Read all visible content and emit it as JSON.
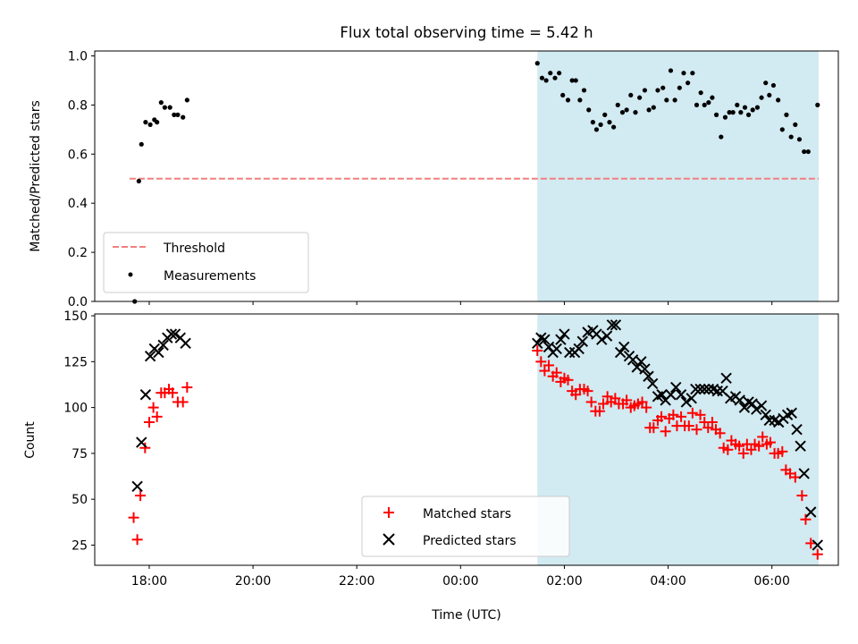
{
  "title": "Flux total observing time = 5.42 h",
  "colors": {
    "shade": "#add8e6",
    "threshold": "#f08080",
    "matched": "#ff0000",
    "predicted": "#000000",
    "measurement": "#000000"
  },
  "chart_data": [
    {
      "type": "scatter",
      "panel": "top",
      "ylabel": "Matched/Predicted stars",
      "ylim": [
        0,
        1.02
      ],
      "yticks": [
        0.0,
        0.2,
        0.4,
        0.6,
        0.8,
        1.0
      ],
      "ytick_labels": [
        "0.0",
        "0.2",
        "0.4",
        "0.6",
        "0.8",
        "1.0"
      ],
      "xlim": [
        16.95,
        31.28
      ],
      "shaded_x_range": [
        25.48,
        30.9
      ],
      "threshold": {
        "name": "Threshold",
        "value": 0.5,
        "x_range": [
          17.62,
          30.9
        ]
      },
      "legend": {
        "location": "lower left",
        "entries": [
          "Threshold",
          "Measurements"
        ]
      },
      "series": [
        {
          "name": "Measurements",
          "points": [
            [
              17.72,
              0.0
            ],
            [
              17.8,
              0.49
            ],
            [
              17.85,
              0.64
            ],
            [
              17.93,
              0.73
            ],
            [
              18.02,
              0.72
            ],
            [
              18.1,
              0.74
            ],
            [
              18.15,
              0.73
            ],
            [
              18.23,
              0.81
            ],
            [
              18.3,
              0.79
            ],
            [
              18.4,
              0.79
            ],
            [
              18.48,
              0.76
            ],
            [
              18.55,
              0.76
            ],
            [
              18.65,
              0.75
            ],
            [
              18.73,
              0.82
            ],
            [
              25.48,
              0.97
            ],
            [
              25.57,
              0.91
            ],
            [
              25.65,
              0.9
            ],
            [
              25.73,
              0.93
            ],
            [
              25.82,
              0.91
            ],
            [
              25.9,
              0.93
            ],
            [
              25.97,
              0.84
            ],
            [
              26.07,
              0.82
            ],
            [
              26.15,
              0.9
            ],
            [
              26.22,
              0.9
            ],
            [
              26.3,
              0.82
            ],
            [
              26.38,
              0.86
            ],
            [
              26.47,
              0.78
            ],
            [
              26.55,
              0.73
            ],
            [
              26.62,
              0.7
            ],
            [
              26.7,
              0.72
            ],
            [
              26.78,
              0.76
            ],
            [
              26.87,
              0.73
            ],
            [
              26.95,
              0.71
            ],
            [
              27.03,
              0.8
            ],
            [
              27.12,
              0.77
            ],
            [
              27.2,
              0.78
            ],
            [
              27.28,
              0.84
            ],
            [
              27.37,
              0.77
            ],
            [
              27.45,
              0.83
            ],
            [
              27.55,
              0.86
            ],
            [
              27.63,
              0.78
            ],
            [
              27.72,
              0.79
            ],
            [
              27.8,
              0.86
            ],
            [
              27.9,
              0.87
            ],
            [
              27.97,
              0.82
            ],
            [
              28.05,
              0.94
            ],
            [
              28.13,
              0.82
            ],
            [
              28.22,
              0.87
            ],
            [
              28.3,
              0.93
            ],
            [
              28.38,
              0.89
            ],
            [
              28.47,
              0.93
            ],
            [
              28.55,
              0.8
            ],
            [
              28.63,
              0.85
            ],
            [
              28.7,
              0.8
            ],
            [
              28.78,
              0.81
            ],
            [
              28.85,
              0.83
            ],
            [
              28.93,
              0.76
            ],
            [
              29.02,
              0.67
            ],
            [
              29.1,
              0.75
            ],
            [
              29.18,
              0.77
            ],
            [
              29.25,
              0.77
            ],
            [
              29.33,
              0.8
            ],
            [
              29.4,
              0.77
            ],
            [
              29.48,
              0.79
            ],
            [
              29.55,
              0.76
            ],
            [
              29.63,
              0.78
            ],
            [
              29.72,
              0.79
            ],
            [
              29.8,
              0.83
            ],
            [
              29.88,
              0.89
            ],
            [
              29.95,
              0.84
            ],
            [
              30.03,
              0.88
            ],
            [
              30.12,
              0.82
            ],
            [
              30.2,
              0.7
            ],
            [
              30.28,
              0.76
            ],
            [
              30.37,
              0.67
            ],
            [
              30.45,
              0.72
            ],
            [
              30.53,
              0.66
            ],
            [
              30.62,
              0.61
            ],
            [
              30.7,
              0.61
            ],
            [
              30.88,
              0.8
            ]
          ]
        }
      ]
    },
    {
      "type": "scatter",
      "panel": "bottom",
      "ylabel": "Count",
      "xlabel": "Time (UTC)",
      "ylim": [
        14,
        151
      ],
      "yticks": [
        25,
        50,
        75,
        100,
        125,
        150
      ],
      "ytick_labels": [
        "25",
        "50",
        "75",
        "100",
        "125",
        "150"
      ],
      "xlim": [
        16.95,
        31.28
      ],
      "xticks": [
        18,
        20,
        22,
        24,
        26,
        28,
        30
      ],
      "xtick_labels": [
        "18:00",
        "20:00",
        "22:00",
        "00:00",
        "02:00",
        "04:00",
        "06:00"
      ],
      "shaded_x_range": [
        25.48,
        30.9
      ],
      "legend": {
        "location": "lower center",
        "entries": [
          "Matched stars",
          "Predicted stars"
        ]
      },
      "series": [
        {
          "name": "Matched stars",
          "marker": "plus",
          "points": [
            [
              17.7,
              40
            ],
            [
              17.77,
              28
            ],
            [
              17.83,
              52
            ],
            [
              17.92,
              78
            ],
            [
              18.0,
              92
            ],
            [
              18.08,
              100
            ],
            [
              18.15,
              95
            ],
            [
              18.23,
              108
            ],
            [
              18.3,
              108
            ],
            [
              18.38,
              110
            ],
            [
              18.45,
              108
            ],
            [
              18.55,
              103
            ],
            [
              18.65,
              103
            ],
            [
              18.73,
              111
            ],
            [
              25.48,
              131
            ],
            [
              25.55,
              125
            ],
            [
              25.62,
              120
            ],
            [
              25.7,
              123
            ],
            [
              25.78,
              117
            ],
            [
              25.85,
              119
            ],
            [
              25.93,
              114
            ],
            [
              26.0,
              116
            ],
            [
              26.07,
              115
            ],
            [
              26.15,
              109
            ],
            [
              26.22,
              107
            ],
            [
              26.3,
              110
            ],
            [
              26.38,
              110
            ],
            [
              26.45,
              109
            ],
            [
              26.52,
              103
            ],
            [
              26.6,
              98
            ],
            [
              26.68,
              98
            ],
            [
              26.75,
              102
            ],
            [
              26.83,
              106
            ],
            [
              26.9,
              103
            ],
            [
              26.98,
              105
            ],
            [
              27.05,
              102
            ],
            [
              27.13,
              102
            ],
            [
              27.2,
              104
            ],
            [
              27.28,
              100
            ],
            [
              27.35,
              101
            ],
            [
              27.42,
              102
            ],
            [
              27.5,
              103
            ],
            [
              27.58,
              100
            ],
            [
              27.65,
              89
            ],
            [
              27.72,
              89
            ],
            [
              27.8,
              93
            ],
            [
              27.87,
              95
            ],
            [
              27.95,
              87
            ],
            [
              28.02,
              94
            ],
            [
              28.1,
              96
            ],
            [
              28.17,
              90
            ],
            [
              28.25,
              95
            ],
            [
              28.32,
              90
            ],
            [
              28.4,
              90
            ],
            [
              28.47,
              97
            ],
            [
              28.55,
              88
            ],
            [
              28.62,
              96
            ],
            [
              28.7,
              92
            ],
            [
              28.77,
              89
            ],
            [
              28.85,
              92
            ],
            [
              28.92,
              88
            ],
            [
              29.0,
              86
            ],
            [
              29.07,
              78
            ],
            [
              29.15,
              77
            ],
            [
              29.22,
              82
            ],
            [
              29.3,
              80
            ],
            [
              29.37,
              79
            ],
            [
              29.45,
              75
            ],
            [
              29.52,
              80
            ],
            [
              29.6,
              77
            ],
            [
              29.67,
              80
            ],
            [
              29.75,
              79
            ],
            [
              29.82,
              84
            ],
            [
              29.9,
              80
            ],
            [
              29.97,
              81
            ],
            [
              30.05,
              75
            ],
            [
              30.12,
              75
            ],
            [
              30.2,
              76
            ],
            [
              30.27,
              66
            ],
            [
              30.35,
              64
            ],
            [
              30.45,
              62
            ],
            [
              30.58,
              52
            ],
            [
              30.65,
              39
            ],
            [
              30.75,
              26
            ],
            [
              30.88,
              20
            ]
          ]
        },
        {
          "name": "Predicted stars",
          "marker": "x",
          "points": [
            [
              17.77,
              57
            ],
            [
              17.85,
              81
            ],
            [
              17.93,
              107
            ],
            [
              18.02,
              128
            ],
            [
              18.1,
              132
            ],
            [
              18.18,
              130
            ],
            [
              18.27,
              134
            ],
            [
              18.35,
              138
            ],
            [
              18.43,
              140
            ],
            [
              18.5,
              140
            ],
            [
              18.6,
              138
            ],
            [
              18.7,
              135
            ],
            [
              25.48,
              135
            ],
            [
              25.55,
              138
            ],
            [
              25.62,
              137
            ],
            [
              25.7,
              133
            ],
            [
              25.78,
              130
            ],
            [
              25.85,
              132
            ],
            [
              25.93,
              137
            ],
            [
              26.0,
              140
            ],
            [
              26.1,
              130
            ],
            [
              26.2,
              130
            ],
            [
              26.28,
              132
            ],
            [
              26.35,
              136
            ],
            [
              26.45,
              141
            ],
            [
              26.55,
              142
            ],
            [
              26.62,
              140
            ],
            [
              26.72,
              137
            ],
            [
              26.82,
              139
            ],
            [
              26.92,
              145
            ],
            [
              26.99,
              145
            ],
            [
              27.08,
              130
            ],
            [
              27.15,
              133
            ],
            [
              27.25,
              128
            ],
            [
              27.32,
              126
            ],
            [
              27.4,
              122
            ],
            [
              27.48,
              125
            ],
            [
              27.55,
              121
            ],
            [
              27.62,
              117
            ],
            [
              27.7,
              113
            ],
            [
              27.8,
              106
            ],
            [
              27.88,
              107
            ],
            [
              27.95,
              104
            ],
            [
              28.05,
              107
            ],
            [
              28.15,
              111
            ],
            [
              28.25,
              107
            ],
            [
              28.35,
              103
            ],
            [
              28.45,
              105
            ],
            [
              28.53,
              110
            ],
            [
              28.62,
              110
            ],
            [
              28.7,
              110
            ],
            [
              28.78,
              110
            ],
            [
              28.87,
              110
            ],
            [
              28.95,
              109
            ],
            [
              29.05,
              109
            ],
            [
              29.12,
              116
            ],
            [
              29.2,
              105
            ],
            [
              29.3,
              106
            ],
            [
              29.38,
              104
            ],
            [
              29.47,
              100
            ],
            [
              29.55,
              103
            ],
            [
              29.62,
              102
            ],
            [
              29.7,
              99
            ],
            [
              29.8,
              101
            ],
            [
              29.88,
              96
            ],
            [
              29.95,
              93
            ],
            [
              30.05,
              93
            ],
            [
              30.13,
              92
            ],
            [
              30.22,
              94
            ],
            [
              30.3,
              96
            ],
            [
              30.38,
              97
            ],
            [
              30.48,
              88
            ],
            [
              30.55,
              79
            ],
            [
              30.62,
              64
            ],
            [
              30.75,
              43
            ],
            [
              30.88,
              25
            ]
          ]
        }
      ]
    }
  ]
}
